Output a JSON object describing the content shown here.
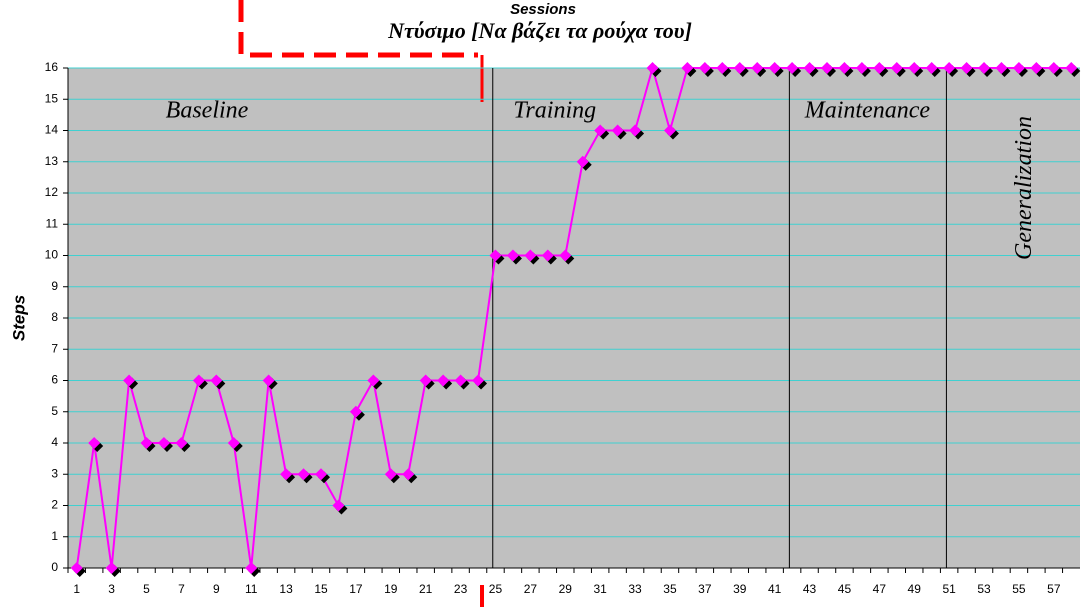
{
  "chart_data": {
    "type": "line",
    "title": "Sessions",
    "subtitle": "Ντύσιμο [Να βάζει τα ρούχα του]",
    "y_label": "Steps",
    "categories": [
      1,
      null,
      3,
      null,
      5,
      null,
      7,
      null,
      9,
      null,
      11,
      null,
      13,
      null,
      15,
      null,
      17,
      null,
      19,
      null,
      21,
      null,
      23,
      null,
      25,
      null,
      27,
      null,
      29,
      null,
      31,
      null,
      33,
      null,
      35,
      null,
      37,
      null,
      39,
      null,
      41,
      null,
      43,
      null,
      45,
      null,
      47,
      null,
      49,
      null,
      51,
      null,
      53,
      null,
      55,
      null,
      57,
      null
    ],
    "series": [
      {
        "name": "Steps",
        "color": "#ff00ff",
        "values": [
          0,
          4,
          0,
          6,
          4,
          4,
          4,
          6,
          6,
          4,
          0,
          6,
          3,
          3,
          3,
          2,
          5,
          6,
          3,
          3,
          6,
          6,
          6,
          6,
          10,
          10,
          10,
          10,
          10,
          13,
          14,
          14,
          14,
          16,
          14,
          16,
          16,
          16,
          16,
          16,
          16,
          16,
          16,
          16,
          16,
          16,
          16,
          16,
          16,
          16,
          16,
          16,
          16,
          16,
          16,
          16,
          16,
          16
        ]
      }
    ],
    "phases": [
      {
        "label": "Baseline",
        "start": 1
      },
      {
        "label": "Training",
        "start": 25
      },
      {
        "label": "Maintenance",
        "start": 42
      },
      {
        "label": "Generalization",
        "start": 51
      }
    ],
    "ylim": [
      0,
      16
    ],
    "yticks": [
      0,
      1,
      2,
      3,
      4,
      5,
      6,
      7,
      8,
      9,
      10,
      11,
      12,
      13,
      14,
      15,
      16
    ],
    "grid": true
  }
}
